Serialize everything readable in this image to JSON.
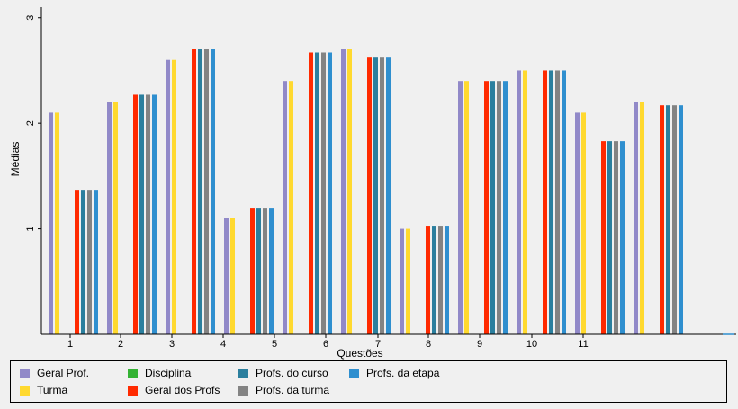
{
  "chart_data": {
    "type": "bar",
    "xlabel": "Questões",
    "ylabel": "Médias",
    "ylim": [
      0,
      3.1
    ],
    "yticks": [
      1,
      2,
      3
    ],
    "x_tick_labels": [
      "1",
      "2",
      "3",
      "4",
      "5",
      "6",
      "7",
      "8",
      "9",
      "10",
      "11"
    ],
    "grid": false,
    "legend_position": "bottom",
    "series": [
      {
        "name": "Geral Prof.",
        "color": "#9189c8"
      },
      {
        "name": "Turma",
        "color": "#ffd92f"
      },
      {
        "name": "Disciplina",
        "color": "#33b233"
      },
      {
        "name": "Geral dos Profs",
        "color": "#ff2a00"
      },
      {
        "name": "Profs. do curso",
        "color": "#2b7f9e"
      },
      {
        "name": "Profs. da turma",
        "color": "#838383"
      },
      {
        "name": "Profs. da etapa",
        "color": "#2f8fcf"
      }
    ],
    "groups": [
      {
        "series": [
          "Geral Prof.",
          "Turma"
        ],
        "value": 2.1
      },
      {
        "series": [
          "Geral dos Profs",
          "Profs. do curso",
          "Profs. da turma",
          "Profs. da etapa"
        ],
        "value": 1.37
      },
      {
        "series": [
          "Geral Prof.",
          "Turma"
        ],
        "value": 2.2
      },
      {
        "series": [
          "Geral dos Profs",
          "Profs. do curso",
          "Profs. da turma",
          "Profs. da etapa"
        ],
        "value": 2.27
      },
      {
        "series": [
          "Geral Prof.",
          "Turma"
        ],
        "value": 2.6
      },
      {
        "series": [
          "Geral dos Profs",
          "Profs. do curso",
          "Profs. da turma",
          "Profs. da etapa"
        ],
        "value": 2.7
      },
      {
        "series": [
          "Geral Prof.",
          "Turma"
        ],
        "value": 1.1
      },
      {
        "series": [
          "Geral dos Profs",
          "Profs. do curso",
          "Profs. da turma",
          "Profs. da etapa"
        ],
        "value": 1.2
      },
      {
        "series": [
          "Geral Prof.",
          "Turma"
        ],
        "value": 2.4
      },
      {
        "series": [
          "Geral dos Profs",
          "Profs. do curso",
          "Profs. da turma",
          "Profs. da etapa"
        ],
        "value": 2.67
      },
      {
        "series": [
          "Geral Prof.",
          "Turma"
        ],
        "value": 2.7
      },
      {
        "series": [
          "Geral dos Profs",
          "Profs. do curso",
          "Profs. da turma",
          "Profs. da etapa"
        ],
        "value": 2.63
      },
      {
        "series": [
          "Geral Prof.",
          "Turma"
        ],
        "value": 1.0
      },
      {
        "series": [
          "Geral dos Profs",
          "Profs. do curso",
          "Profs. da turma",
          "Profs. da etapa"
        ],
        "value": 1.03
      },
      {
        "series": [
          "Geral Prof.",
          "Turma"
        ],
        "value": 2.4
      },
      {
        "series": [
          "Geral dos Profs",
          "Profs. do curso",
          "Profs. da turma",
          "Profs. da etapa"
        ],
        "value": 2.4
      },
      {
        "series": [
          "Geral Prof.",
          "Turma"
        ],
        "value": 2.5
      },
      {
        "series": [
          "Geral dos Profs",
          "Profs. do curso",
          "Profs. da turma",
          "Profs. da etapa"
        ],
        "value": 2.5
      },
      {
        "series": [
          "Geral Prof.",
          "Turma"
        ],
        "value": 2.1
      },
      {
        "series": [
          "Geral dos Profs",
          "Profs. do curso",
          "Profs. da turma",
          "Profs. da etapa"
        ],
        "value": 1.83
      },
      {
        "series": [
          "Geral Prof.",
          "Turma"
        ],
        "value": 2.2
      },
      {
        "series": [
          "Geral dos Profs",
          "Profs. do curso",
          "Profs. da turma",
          "Profs. da etapa"
        ],
        "value": 2.17
      }
    ]
  }
}
